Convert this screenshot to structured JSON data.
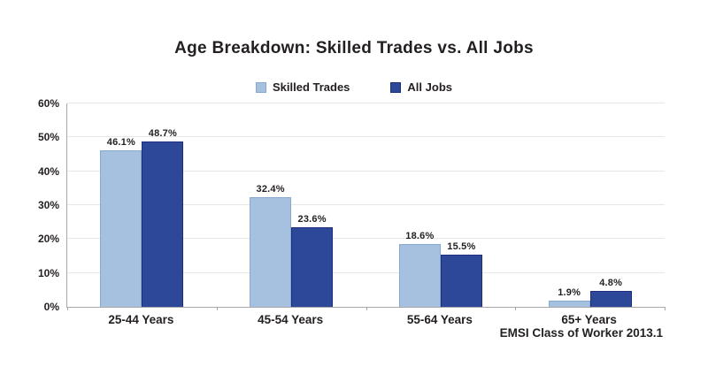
{
  "title": "Age Breakdown: Skilled Trades vs. All Jobs",
  "footer": "EMSI Class of Worker 2013.1",
  "colors": {
    "text": "#231f20",
    "axis": "#a8a8a8",
    "gridline": "#e7e7e7",
    "series": [
      {
        "fill": "#a6c1e0",
        "border": "#86a9d1"
      },
      {
        "fill": "#2e4899",
        "border": "#1e2e7e"
      }
    ]
  },
  "chart_data": {
    "type": "bar",
    "title": "Age Breakdown: Skilled Trades vs. All Jobs",
    "categories": [
      "25-44 Years",
      "45-54 Years",
      "55-64 Years",
      "65+ Years"
    ],
    "series": [
      {
        "name": "Skilled Trades",
        "values": [
          46.1,
          32.4,
          18.6,
          1.9
        ]
      },
      {
        "name": "All Jobs",
        "values": [
          48.7,
          23.6,
          15.5,
          4.8
        ]
      }
    ],
    "value_suffix": "%",
    "xlabel": "",
    "ylabel": "",
    "ylim": [
      0,
      60
    ],
    "ytick_step": 10,
    "yticks": [
      "0%",
      "10%",
      "20%",
      "30%",
      "40%",
      "50%",
      "60%"
    ],
    "grid": true,
    "legend_position": "top",
    "annotation": "EMSI Class of Worker 2013.1"
  }
}
